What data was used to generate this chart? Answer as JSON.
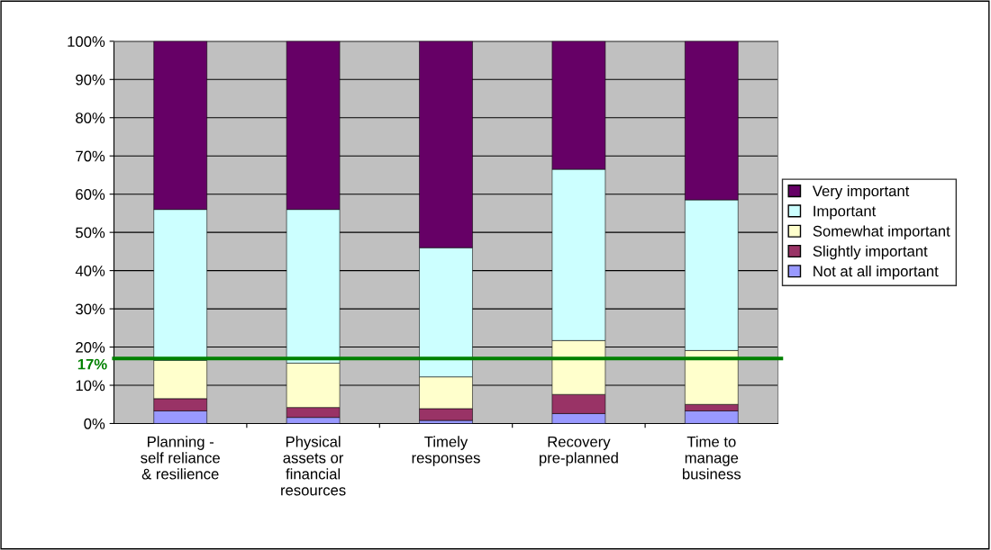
{
  "chart_data": {
    "type": "bar",
    "stacked": true,
    "categories": [
      "Planning -\nself reliance\n& resilience",
      "Physical\nassets or\nfinancial\nresources",
      "Timely\nresponses",
      "Recovery\npre-planned",
      "Time to\nmanage\nbusiness"
    ],
    "series": [
      {
        "name": "Not at all important",
        "color": "#9999ff",
        "values": [
          3.3,
          1.6,
          0.8,
          2.6,
          3.3
        ]
      },
      {
        "name": "Slightly important",
        "color": "#993366",
        "values": [
          3.2,
          2.6,
          3.1,
          5.0,
          1.7
        ]
      },
      {
        "name": "Somewhat important",
        "color": "#ffffcc",
        "values": [
          10.0,
          11.6,
          8.3,
          14.1,
          14.1
        ]
      },
      {
        "name": "Important",
        "color": "#ccffff",
        "values": [
          39.5,
          40.2,
          33.8,
          44.8,
          39.4
        ]
      },
      {
        "name": "Very important",
        "color": "#660066",
        "values": [
          44.0,
          44.0,
          54.0,
          33.5,
          41.5
        ]
      }
    ],
    "ylim": [
      0,
      100
    ],
    "yticks": [
      {
        "value": 0,
        "label": "0%"
      },
      {
        "value": 10,
        "label": "10%"
      },
      {
        "value": 20,
        "label": "20%"
      },
      {
        "value": 30,
        "label": "30%"
      },
      {
        "value": 40,
        "label": "40%"
      },
      {
        "value": 50,
        "label": "50%"
      },
      {
        "value": 60,
        "label": "60%"
      },
      {
        "value": 70,
        "label": "70%"
      },
      {
        "value": 80,
        "label": "80%"
      },
      {
        "value": 90,
        "label": "90%"
      },
      {
        "value": 100,
        "label": "100%"
      }
    ],
    "grid": "y",
    "legend": "right",
    "ref_lines": [
      {
        "axis": "y",
        "value": 17,
        "label": "17%",
        "color": "#008000"
      }
    ]
  }
}
